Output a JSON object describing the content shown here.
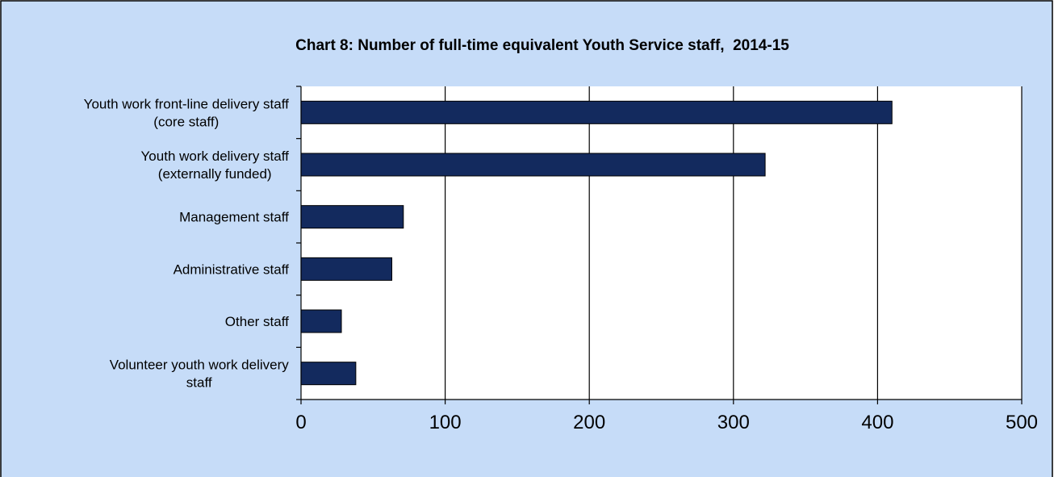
{
  "chart_data": {
    "type": "bar",
    "orientation": "horizontal",
    "title": "Chart 8: Number of full-time equivalent Youth Service staff,  2014-15",
    "xlabel": "",
    "ylabel": "",
    "xlim": [
      0,
      500
    ],
    "ticks": [
      "0",
      "100",
      "200",
      "300",
      "400",
      "500"
    ],
    "tick_values": [
      0,
      100,
      200,
      300,
      400,
      500
    ],
    "grid": "vertical",
    "legend": "none",
    "categories": [
      [
        "Youth work front-line delivery staff",
        "(core staff)"
      ],
      [
        "Youth work delivery staff",
        "(externally funded)"
      ],
      [
        "Management staff"
      ],
      [
        "Administrative staff"
      ],
      [
        "Other staff"
      ],
      [
        "Volunteer youth work delivery",
        "staff"
      ]
    ],
    "values": [
      410,
      322,
      71,
      63,
      28,
      38
    ],
    "colors": {
      "background": "#c6dcf8",
      "plot_area": "#ffffff",
      "bar_fill": "#132a5e",
      "axis": "#000000"
    }
  }
}
